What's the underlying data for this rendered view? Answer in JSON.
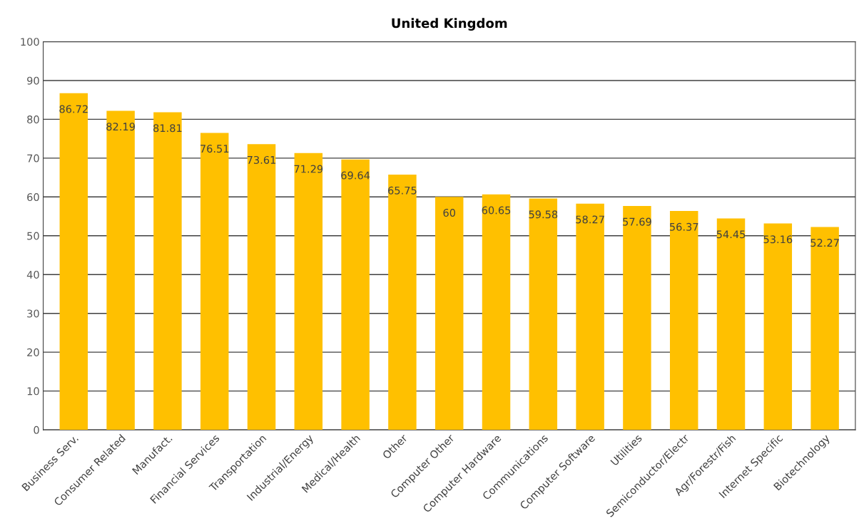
{
  "chart_data": {
    "type": "bar",
    "title": "United Kingdom",
    "categories": [
      "Business Serv.",
      "Consumer Related",
      "Manufact.",
      "Financial Services",
      "Transportation",
      "Industrial/Energy",
      "Medical/Health",
      "Other",
      "Computer Other",
      "Computer Hardware",
      "Communications",
      "Computer Software",
      "Utilities",
      "Semiconductor/Electr",
      "Agr/Forestr/Fish",
      "Internet Specific",
      "Biotechnology"
    ],
    "values": [
      86.72,
      82.19,
      81.81,
      76.51,
      73.61,
      71.29,
      69.64,
      65.75,
      60,
      60.65,
      59.58,
      58.27,
      57.69,
      56.37,
      54.45,
      53.16,
      52.27
    ],
    "color": "#ffc000",
    "ylim": [
      0,
      100
    ],
    "yticks": [
      0,
      10,
      20,
      30,
      40,
      50,
      60,
      70,
      80,
      90,
      100
    ],
    "grid": "y",
    "data_labels": true
  }
}
